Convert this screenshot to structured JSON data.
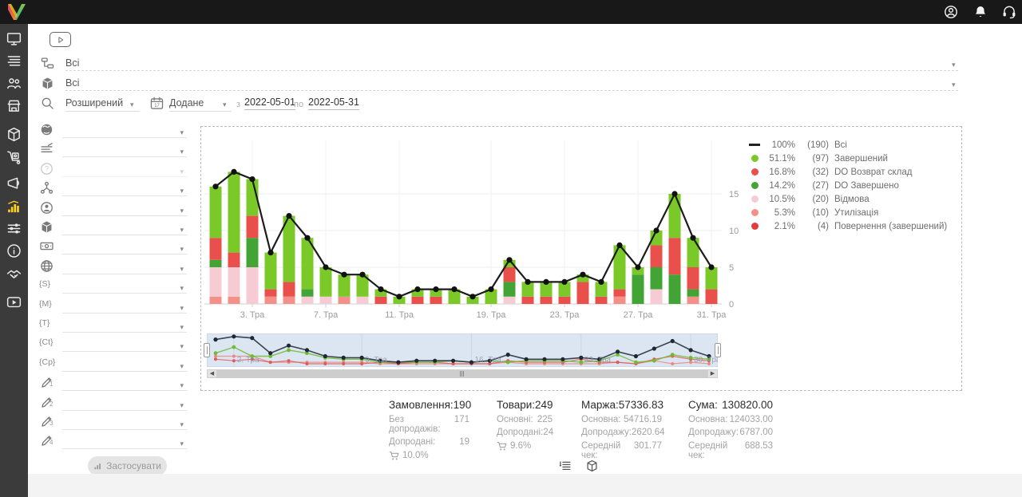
{
  "topbar": {
    "icons": [
      {
        "name": "account-icon",
        "icon": "account"
      },
      {
        "name": "notifications-icon",
        "icon": "bell"
      },
      {
        "name": "support-icon",
        "icon": "headset"
      }
    ]
  },
  "sidebar": {
    "items": [
      {
        "name": "monitor",
        "icon": "monitor",
        "active": false
      },
      {
        "name": "orders",
        "icon": "list",
        "active": false
      },
      {
        "name": "customers",
        "icon": "users",
        "active": false
      },
      {
        "name": "store",
        "icon": "store",
        "active": false
      },
      {
        "name": "products",
        "icon": "cube",
        "active": false
      },
      {
        "name": "supply",
        "icon": "trolley",
        "active": false
      },
      {
        "name": "marketing",
        "icon": "megaphone",
        "active": false
      },
      {
        "name": "analytics",
        "icon": "chart",
        "active": true
      },
      {
        "name": "settings",
        "icon": "sliders",
        "active": false
      },
      {
        "name": "info",
        "icon": "info",
        "active": false
      },
      {
        "name": "partners",
        "icon": "handshake",
        "active": false
      },
      {
        "name": "video",
        "icon": "video",
        "active": false
      }
    ]
  },
  "filters": {
    "group_filter": {
      "icon": "tree",
      "value": "Всі"
    },
    "product_filter": {
      "icon": "cube-filled",
      "value": "Всі"
    },
    "search_mode": {
      "icon": "search",
      "label": "Розширений"
    },
    "date_field": {
      "icon": "calendar",
      "label": "Додане"
    },
    "date_from_label": "з",
    "date_from": "2022-05-01",
    "date_to_label": "по",
    "date_to": "2022-05-31",
    "side_rows": [
      {
        "icon": "globe"
      },
      {
        "icon": "lines-pen"
      },
      {
        "icon": "question",
        "disabled": true
      },
      {
        "icon": "hierarchy"
      },
      {
        "icon": "person-circle"
      },
      {
        "icon": "cube-filled"
      },
      {
        "icon": "banknote"
      },
      {
        "icon": "web"
      },
      {
        "tag": "S"
      },
      {
        "tag": "M"
      },
      {
        "tag": "T"
      },
      {
        "tag": "Ct"
      },
      {
        "tag": "Cp"
      },
      {
        "icon": "pen",
        "sub": "1"
      },
      {
        "icon": "pen",
        "sub": "2"
      },
      {
        "icon": "pen",
        "sub": "3"
      },
      {
        "icon": "pen",
        "sub": "4"
      }
    ],
    "apply_label": "Застосувати"
  },
  "legend": [
    {
      "type": "line",
      "color": "#222222",
      "pct": "100%",
      "count": "(190)",
      "label": "Всі"
    },
    {
      "type": "dot",
      "color": "#7bc928",
      "pct": "51.1%",
      "count": "(97)",
      "label": "Завершений"
    },
    {
      "type": "dot",
      "color": "#e9504c",
      "pct": "16.8%",
      "count": "(32)",
      "label": "DO Возврат склад"
    },
    {
      "type": "dot",
      "color": "#43a436",
      "pct": "14.2%",
      "count": "(27)",
      "label": "DO Завершено"
    },
    {
      "type": "dot",
      "color": "#f6cbd3",
      "pct": "10.5%",
      "count": "(20)",
      "label": "Відмова"
    },
    {
      "type": "dot",
      "color": "#f4908a",
      "pct": "5.3%",
      "count": "(10)",
      "label": "Утилізація"
    },
    {
      "type": "dot",
      "color": "#e43c3c",
      "pct": "2.1%",
      "count": "(4)",
      "label": "Повернення (завершений)"
    }
  ],
  "chart_data": {
    "type": "bar",
    "subtype": "stacked-bars-with-total-line",
    "title": "",
    "xlabel": "",
    "ylabel": "",
    "ylim": [
      0,
      19
    ],
    "y_ticks": [
      0,
      5,
      10,
      15
    ],
    "categories": [
      1,
      2,
      3,
      4,
      5,
      6,
      7,
      8,
      9,
      10,
      11,
      12,
      13,
      17,
      18,
      19,
      20,
      21,
      22,
      23,
      24,
      25,
      26,
      27,
      28,
      29,
      30,
      31
    ],
    "x_tick_labels": [
      {
        "i": 2,
        "label": "3. Тра"
      },
      {
        "i": 6,
        "label": "7. Тра"
      },
      {
        "i": 10,
        "label": "11. Тра"
      },
      {
        "i": 15,
        "label": "19. Тра"
      },
      {
        "i": 19,
        "label": "23. Тра"
      },
      {
        "i": 23,
        "label": "27. Тра"
      },
      {
        "i": 27,
        "label": "31. Тра"
      }
    ],
    "series": [
      {
        "name": "Утилізація",
        "color": "#f4908a",
        "values": [
          1,
          1,
          0,
          1,
          1,
          0,
          0,
          1,
          0,
          0,
          0,
          0,
          0,
          0,
          0,
          0,
          0,
          0,
          0,
          0,
          0,
          0,
          1,
          0,
          0,
          0,
          1,
          0
        ]
      },
      {
        "name": "Відмова",
        "color": "#f6cbd3",
        "values": [
          4,
          4,
          5,
          0,
          0,
          1,
          1,
          0,
          1,
          0,
          0,
          0,
          0,
          0,
          0,
          0,
          1,
          0,
          0,
          0,
          0,
          0,
          0,
          0,
          2,
          0,
          0,
          0
        ]
      },
      {
        "name": "DO Завершено",
        "color": "#43a436",
        "values": [
          1,
          0,
          4,
          0,
          0,
          1,
          0,
          0,
          0,
          0,
          0,
          0,
          0,
          0,
          0,
          0,
          2,
          0,
          0,
          0,
          0,
          0,
          0,
          4,
          3,
          4,
          1,
          0
        ]
      },
      {
        "name": "DO Возврат склад",
        "color": "#e9504c",
        "values": [
          3,
          2,
          3,
          1,
          2,
          0,
          0,
          0,
          0,
          1,
          0,
          1,
          1,
          0,
          0,
          0,
          2,
          1,
          1,
          1,
          3,
          1,
          1,
          0,
          3,
          5,
          3,
          2
        ]
      },
      {
        "name": "Завершений",
        "color": "#7bc928",
        "values": [
          7,
          11,
          5,
          5,
          9,
          7,
          4,
          3,
          3,
          1,
          1,
          1,
          1,
          2,
          1,
          2,
          1,
          2,
          2,
          2,
          1,
          2,
          6,
          1,
          2,
          6,
          4,
          3
        ]
      }
    ],
    "line": {
      "name": "Всі",
      "color": "#1c1c1c",
      "values": [
        16,
        18,
        17,
        7,
        12,
        9,
        5,
        4,
        4,
        2,
        1,
        2,
        2,
        2,
        1,
        2,
        6,
        3,
        3,
        3,
        4,
        3,
        8,
        5,
        10,
        15,
        9,
        5
      ]
    },
    "legend_position": "right",
    "grid": true
  },
  "minimap": {
    "labels": [
      {
        "i": 1,
        "label": "2. Тра"
      },
      {
        "i": 8,
        "label": "9. Тра"
      },
      {
        "i": 14,
        "label": "16. Тра"
      },
      {
        "i": 20,
        "label": "23. Тра"
      },
      {
        "i": 26,
        "label": "30. Тра"
      }
    ]
  },
  "stats": [
    {
      "title": "Замовлення:",
      "value": "190",
      "rows": [
        {
          "label": "Без допродажів:",
          "value": "171"
        },
        {
          "label": "Допродані:",
          "value": "19"
        }
      ],
      "cart": "10.0%"
    },
    {
      "title": "Товари:",
      "value": "249",
      "rows": [
        {
          "label": "Основні:",
          "value": "225"
        },
        {
          "label": "Допродані:",
          "value": "24"
        }
      ],
      "cart": "9.6%"
    },
    {
      "title": "Маржа:",
      "value": "57336.83",
      "rows": [
        {
          "label": "Основна:",
          "value": "54716.19"
        },
        {
          "label": "Допродажу:",
          "value": "2620.64"
        },
        {
          "label": "Середній чек:",
          "value": "301.77"
        }
      ]
    },
    {
      "title": "Сума:",
      "value": "130820.00",
      "rows": [
        {
          "label": "Основна:",
          "value": "124033.00"
        },
        {
          "label": "Допродажу:",
          "value": "6787.00"
        },
        {
          "label": "Середній чек:",
          "value": "688.53"
        }
      ]
    }
  ],
  "view_toggles": [
    {
      "name": "list-view-toggle",
      "icon": "list-view"
    },
    {
      "name": "box-view-toggle",
      "icon": "box-view"
    }
  ]
}
